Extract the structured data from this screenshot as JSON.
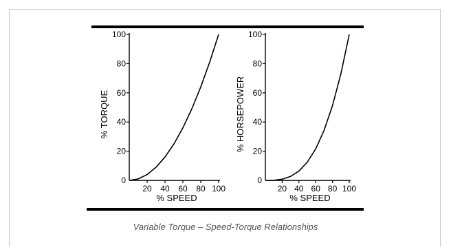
{
  "caption": "Variable Torque – Speed-Torque Relationships",
  "colors": {
    "ink": "#000000",
    "caption": "#555555",
    "frame": "#c8c8c8"
  },
  "chart_data": [
    {
      "type": "line",
      "xlabel": "% SPEED",
      "ylabel": "% TORQUE",
      "xlim": [
        0,
        100
      ],
      "ylim": [
        0,
        100
      ],
      "xticks": [
        20,
        40,
        60,
        80,
        100
      ],
      "yticks": [
        0,
        20,
        40,
        60,
        80,
        100
      ],
      "grid": false,
      "series": [
        {
          "x": [
            0,
            10,
            20,
            30,
            40,
            50,
            60,
            70,
            80,
            90,
            100
          ],
          "y": [
            0,
            1,
            4,
            9,
            16,
            25,
            36,
            49,
            64,
            81,
            100
          ]
        }
      ]
    },
    {
      "type": "line",
      "xlabel": "% SPEED",
      "ylabel": "% HORSEPOWER",
      "xlim": [
        0,
        100
      ],
      "ylim": [
        0,
        100
      ],
      "xticks": [
        20,
        40,
        60,
        80,
        100
      ],
      "yticks": [
        0,
        20,
        40,
        60,
        80,
        100
      ],
      "grid": false,
      "series": [
        {
          "x": [
            0,
            10,
            20,
            30,
            40,
            50,
            60,
            70,
            80,
            90,
            100
          ],
          "y": [
            0,
            0.1,
            0.8,
            2.7,
            6.4,
            12.5,
            21.6,
            34.3,
            51.2,
            72.9,
            100
          ]
        }
      ]
    }
  ]
}
